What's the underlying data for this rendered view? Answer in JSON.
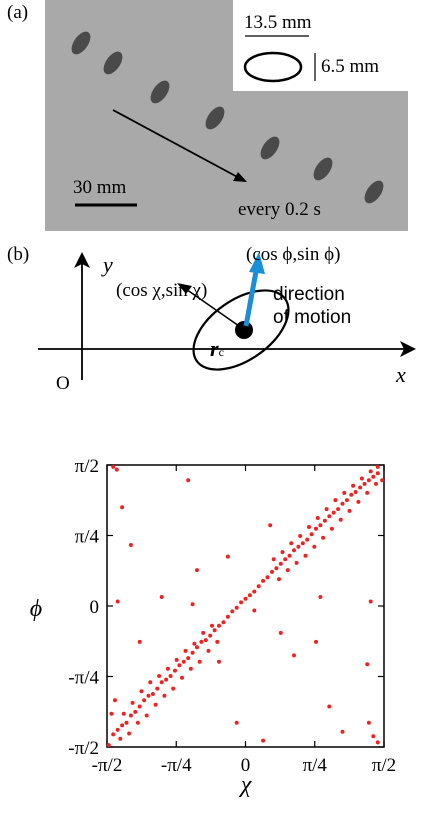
{
  "panel_a": {
    "label": "(a)",
    "length_label": "13.5 mm",
    "width_label": "6.5 mm",
    "scale_label": "30 mm",
    "interval_label": "every 0.2 s"
  },
  "panel_b": {
    "label": "(b)",
    "y_axis": "y",
    "x_axis": "x",
    "origin": "O",
    "orientation_vector": "(cos χ,sin χ)",
    "motion_vector": "(cos ϕ,sin ϕ)",
    "motion_text_1": "direction",
    "motion_text_2": "of motion",
    "center_label": "r",
    "center_subscript": "c"
  },
  "colors": {
    "photo_background": "#a9a9a9",
    "particle": "#4a4a4a",
    "motion_arrow": "#1a8fd6",
    "scatter_points": "#ee2222"
  },
  "chart_data": {
    "type": "scatter",
    "title": "",
    "xlabel": "χ",
    "ylabel": "ϕ",
    "xlim": [
      -1.5708,
      1.5708
    ],
    "ylim": [
      -1.5708,
      1.5708
    ],
    "x_ticks": [
      "-π/2",
      "-π/4",
      "0",
      "π/4",
      "π/2"
    ],
    "y_ticks": [
      "π/2",
      "π/4",
      "0",
      "-π/4",
      "-π/2"
    ],
    "grid": false,
    "series": [
      {
        "points": [
          [
            -1.5,
            -1.43
          ],
          [
            -1.45,
            -1.38
          ],
          [
            -1.4,
            -1.33
          ],
          [
            -1.35,
            -1.3
          ],
          [
            -1.3,
            -1.22
          ],
          [
            -1.25,
            -1.18
          ],
          [
            -1.2,
            -1.12
          ],
          [
            -1.15,
            -1.05
          ],
          [
            -1.1,
            -1.0
          ],
          [
            -1.05,
            -0.98
          ],
          [
            -1.0,
            -0.92
          ],
          [
            -0.95,
            -0.85
          ],
          [
            -0.9,
            -0.82
          ],
          [
            -0.85,
            -0.78
          ],
          [
            -0.8,
            -0.72
          ],
          [
            -0.75,
            -0.66
          ],
          [
            -0.7,
            -0.62
          ],
          [
            -0.65,
            -0.58
          ],
          [
            -0.6,
            -0.52
          ],
          [
            -0.55,
            -0.46
          ],
          [
            -0.5,
            -0.4
          ],
          [
            -0.45,
            -0.38
          ],
          [
            -0.4,
            -0.33
          ],
          [
            -0.35,
            -0.27
          ],
          [
            -0.3,
            -0.22
          ],
          [
            -0.25,
            -0.18
          ],
          [
            -0.2,
            -0.12
          ],
          [
            -0.15,
            -0.06
          ],
          [
            -0.1,
            -0.02
          ],
          [
            -0.05,
            0.04
          ],
          [
            0.0,
            0.08
          ],
          [
            0.05,
            0.12
          ],
          [
            0.1,
            0.16
          ],
          [
            0.15,
            0.22
          ],
          [
            0.2,
            0.28
          ],
          [
            0.25,
            0.32
          ],
          [
            0.3,
            0.38
          ],
          [
            0.35,
            0.42
          ],
          [
            0.4,
            0.47
          ],
          [
            0.45,
            0.52
          ],
          [
            0.5,
            0.56
          ],
          [
            0.55,
            0.62
          ],
          [
            0.6,
            0.66
          ],
          [
            0.65,
            0.7
          ],
          [
            0.7,
            0.74
          ],
          [
            0.75,
            0.8
          ],
          [
            0.8,
            0.86
          ],
          [
            0.85,
            0.9
          ],
          [
            0.9,
            0.95
          ],
          [
            0.95,
            1.0
          ],
          [
            1.0,
            1.04
          ],
          [
            1.05,
            1.08
          ],
          [
            1.1,
            1.14
          ],
          [
            1.15,
            1.18
          ],
          [
            1.2,
            1.24
          ],
          [
            1.25,
            1.27
          ],
          [
            1.3,
            1.32
          ],
          [
            1.35,
            1.36
          ],
          [
            1.4,
            1.4
          ],
          [
            1.45,
            1.44
          ],
          [
            1.5,
            1.48
          ],
          [
            -1.52,
            -1.2
          ],
          [
            -1.48,
            -1.05
          ],
          [
            -1.42,
            -1.48
          ],
          [
            -1.38,
            -1.2
          ],
          [
            -1.32,
            -1.42
          ],
          [
            -1.28,
            -1.08
          ],
          [
            -1.22,
            -1.3
          ],
          [
            -1.18,
            -0.95
          ],
          [
            -1.12,
            -1.22
          ],
          [
            -1.08,
            -0.85
          ],
          [
            -1.02,
            -1.1
          ],
          [
            -0.98,
            -0.78
          ],
          [
            -0.92,
            -1.0
          ],
          [
            -0.88,
            -0.7
          ],
          [
            -0.82,
            -0.92
          ],
          [
            -0.78,
            -0.6
          ],
          [
            -0.72,
            -0.8
          ],
          [
            -0.68,
            -0.5
          ],
          [
            -0.62,
            -0.7
          ],
          [
            -0.58,
            -0.42
          ],
          [
            -0.52,
            -0.62
          ],
          [
            -0.48,
            -0.3
          ],
          [
            -0.42,
            -0.5
          ],
          [
            -0.38,
            -0.22
          ],
          [
            -0.32,
            -0.4
          ],
          [
            0.32,
            0.52
          ],
          [
            0.38,
            0.3
          ],
          [
            0.42,
            0.6
          ],
          [
            0.48,
            0.4
          ],
          [
            0.52,
            0.7
          ],
          [
            0.58,
            0.48
          ],
          [
            0.62,
            0.78
          ],
          [
            0.68,
            0.56
          ],
          [
            0.72,
            0.88
          ],
          [
            0.78,
            0.66
          ],
          [
            0.82,
            0.98
          ],
          [
            0.88,
            0.76
          ],
          [
            0.92,
            1.08
          ],
          [
            0.98,
            0.86
          ],
          [
            1.02,
            1.18
          ],
          [
            1.08,
            0.96
          ],
          [
            1.12,
            1.26
          ],
          [
            1.18,
            1.06
          ],
          [
            1.22,
            1.34
          ],
          [
            1.28,
            1.16
          ],
          [
            1.32,
            1.42
          ],
          [
            1.38,
            1.26
          ],
          [
            1.42,
            1.5
          ],
          [
            1.48,
            1.36
          ],
          [
            -1.5,
            1.55
          ],
          [
            -1.46,
            1.52
          ],
          [
            -1.4,
            1.1
          ],
          [
            -1.3,
            0.68
          ],
          [
            -1.45,
            0.05
          ],
          [
            -0.95,
            0.1
          ],
          [
            -0.6,
            0.02
          ],
          [
            -0.55,
            0.4
          ],
          [
            -0.2,
            0.55
          ],
          [
            0.1,
            -0.05
          ],
          [
            0.4,
            -0.3
          ],
          [
            0.55,
            -0.55
          ],
          [
            0.8,
            -0.4
          ],
          [
            0.95,
            -1.12
          ],
          [
            1.1,
            -1.4
          ],
          [
            1.4,
            -1.3
          ],
          [
            1.45,
            -1.45
          ],
          [
            1.5,
            -1.52
          ],
          [
            1.42,
            0.05
          ],
          [
            1.38,
            -0.65
          ],
          [
            1.5,
            1.55
          ],
          [
            1.55,
            1.4
          ],
          [
            -1.55,
            -1.55
          ],
          [
            -0.1,
            -1.3
          ],
          [
            0.2,
            -1.5
          ],
          [
            -0.65,
            1.4
          ],
          [
            0.85,
            0.1
          ],
          [
            -0.3,
            -0.62
          ],
          [
            -1.2,
            -0.4
          ],
          [
            0.28,
            0.9
          ]
        ]
      }
    ]
  }
}
